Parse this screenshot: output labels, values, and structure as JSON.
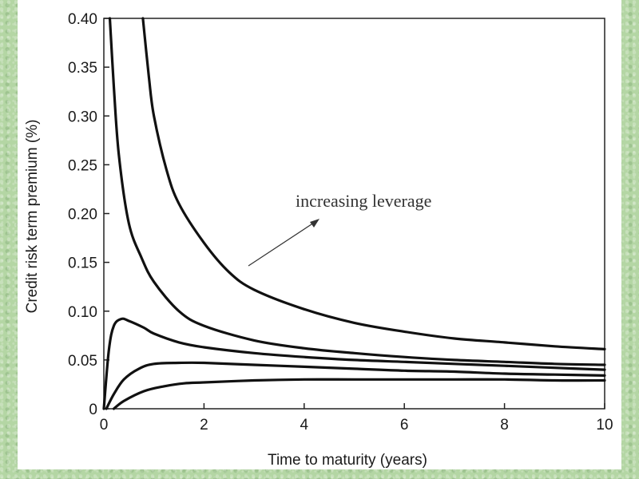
{
  "chart_data": {
    "type": "line",
    "title": "",
    "xlabel": "Time to maturity (years)",
    "ylabel": "Credit risk term premium (%)",
    "xlim": [
      0,
      10
    ],
    "ylim": [
      0,
      0.4
    ],
    "x_ticks": [
      "0",
      "2",
      "4",
      "6",
      "8",
      "10"
    ],
    "y_ticks": [
      "0",
      "0.05",
      "0.10",
      "0.15",
      "0.20",
      "0.25",
      "0.30",
      "0.35",
      "0.40"
    ],
    "annotation": "increasing leverage",
    "grid": false,
    "line_color": "#111111",
    "series": [
      {
        "x": [
          0.2,
          0.4,
          0.8,
          1.2,
          1.6,
          2,
          3,
          4,
          5,
          6,
          7,
          8,
          9,
          10
        ],
        "y": [
          0,
          0.008,
          0.018,
          0.023,
          0.026,
          0.027,
          0.029,
          0.03,
          0.03,
          0.03,
          0.03,
          0.03,
          0.029,
          0.029
        ]
      },
      {
        "x": [
          0.05,
          0.2,
          0.4,
          0.7,
          1,
          1.5,
          2,
          3,
          4,
          5,
          6,
          7,
          8,
          9,
          10
        ],
        "y": [
          0,
          0.015,
          0.03,
          0.041,
          0.046,
          0.047,
          0.047,
          0.045,
          0.043,
          0.041,
          0.039,
          0.038,
          0.036,
          0.035,
          0.034
        ]
      },
      {
        "x": [
          0,
          0.1,
          0.2,
          0.35,
          0.5,
          0.8,
          1,
          1.5,
          2,
          3,
          4,
          5,
          6,
          7,
          8,
          9,
          10
        ],
        "y": [
          0,
          0.06,
          0.085,
          0.092,
          0.09,
          0.083,
          0.077,
          0.068,
          0.063,
          0.057,
          0.053,
          0.05,
          0.048,
          0.046,
          0.044,
          0.042,
          0.04
        ]
      },
      {
        "x": [
          0.12,
          0.2,
          0.3,
          0.5,
          0.75,
          1,
          1.5,
          2,
          3,
          4,
          5,
          6,
          7,
          8,
          9,
          10
        ],
        "y": [
          0.4,
          0.33,
          0.26,
          0.19,
          0.155,
          0.13,
          0.1,
          0.085,
          0.07,
          0.062,
          0.057,
          0.053,
          0.05,
          0.048,
          0.046,
          0.045
        ]
      },
      {
        "x": [
          0.78,
          0.9,
          1,
          1.25,
          1.5,
          2,
          2.5,
          3,
          4,
          5,
          6,
          7,
          8,
          9,
          10
        ],
        "y": [
          0.4,
          0.34,
          0.3,
          0.245,
          0.21,
          0.17,
          0.14,
          0.122,
          0.102,
          0.088,
          0.079,
          0.072,
          0.068,
          0.064,
          0.061
        ]
      }
    ]
  }
}
